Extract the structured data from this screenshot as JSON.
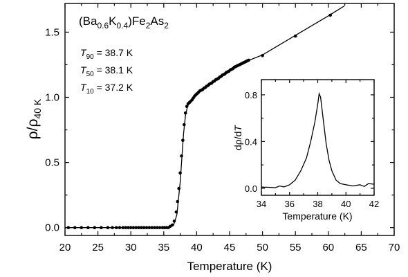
{
  "chart_data": [
    {
      "type": "scatter",
      "xlabel": "Temperature (K)",
      "ylabel": {
        "main": "ρ/ρ",
        "sub": "40 K"
      },
      "xlim": [
        20,
        70
      ],
      "ylim": [
        -0.06,
        1.72
      ],
      "x_ticks": [
        "20",
        "25",
        "30",
        "35",
        "40",
        "45",
        "50",
        "55",
        "60",
        "65",
        "70"
      ],
      "y_ticks": [
        "0.0",
        "0.5",
        "1.0",
        "1.5"
      ],
      "grid": false,
      "formula": {
        "open": "(Ba",
        "s1": "0.6",
        "k": "K",
        "s2": "0.4",
        "mid": ")Fe",
        "s3": "2",
        "as": "As",
        "s4": "2"
      },
      "annotations": [
        {
          "sym": "T",
          "sub": "90",
          "text": " = 38.7 K"
        },
        {
          "sym": "T",
          "sub": "50",
          "text": " = 38.1 K"
        },
        {
          "sym": "T",
          "sub": "10",
          "text": " = 37.2 K"
        }
      ],
      "series": [
        {
          "points": {
            "x": [
              20.5,
              21.5,
              22.5,
              23.5,
              24.5,
              25.5,
              26.5,
              27.2,
              27.8,
              28.3,
              28.8,
              29.2,
              29.6,
              30.0,
              30.4,
              30.8,
              31.2,
              31.6,
              32.0,
              32.4,
              32.8,
              33.2,
              33.6,
              34.0,
              34.4,
              34.8,
              35.1,
              35.4,
              35.7,
              36.0,
              36.3,
              36.6,
              36.9,
              37.1,
              37.3,
              37.5,
              37.7,
              37.9,
              38.1,
              38.3,
              38.5,
              38.7,
              38.9,
              39.1,
              39.3,
              39.5,
              39.7,
              39.9,
              40.1,
              40.3,
              40.5,
              40.7,
              40.9,
              41.1,
              41.3,
              41.5,
              41.7,
              41.9,
              42.1,
              42.3,
              42.5,
              42.7,
              42.9,
              43.1,
              43.3,
              43.5,
              43.7,
              43.9,
              44.1,
              44.3,
              44.5,
              44.7,
              44.9,
              45.1,
              45.3,
              45.5,
              45.7,
              45.9,
              46.1,
              46.3,
              46.5,
              46.7,
              46.9,
              47.1,
              47.3,
              47.5,
              47.7,
              47.9,
              50,
              55,
              60.3
            ],
            "y": [
              0.0,
              0.0,
              0.0,
              0.0,
              0.0,
              0.0,
              0.0,
              0.0,
              0.0,
              0.0,
              0.0,
              0.0,
              0.0,
              0.0,
              0.0,
              0.0,
              0.0,
              0.0,
              0.0,
              0.0,
              0.0,
              0.0,
              0.0,
              0.0,
              0.0,
              0.0,
              0.0,
              0.0,
              0.0,
              0.01,
              0.02,
              0.05,
              0.12,
              0.2,
              0.3,
              0.42,
              0.55,
              0.67,
              0.79,
              0.88,
              0.93,
              0.95,
              0.96,
              0.97,
              0.98,
              0.995,
              1.01,
              1.02,
              1.03,
              1.04,
              1.05,
              1.055,
              1.06,
              1.07,
              1.075,
              1.085,
              1.09,
              1.1,
              1.105,
              1.11,
              1.12,
              1.125,
              1.135,
              1.14,
              1.145,
              1.155,
              1.16,
              1.17,
              1.175,
              1.18,
              1.19,
              1.195,
              1.2,
              1.21,
              1.215,
              1.22,
              1.23,
              1.235,
              1.24,
              1.245,
              1.25,
              1.255,
              1.26,
              1.265,
              1.27,
              1.275,
              1.28,
              1.285,
              1.32,
              1.47,
              1.63
            ]
          },
          "curve": {
            "x": [
              20,
              35,
              36,
              36.5,
              37,
              37.5,
              38,
              38.3,
              38.6,
              38.9,
              39.2,
              39.6,
              40.0,
              40.5,
              41,
              42,
              44,
              46,
              48,
              50,
              55,
              60,
              62.4
            ],
            "y": [
              0.0,
              0.0,
              0.005,
              0.02,
              0.1,
              0.35,
              0.72,
              0.86,
              0.93,
              0.955,
              0.975,
              1.0,
              1.025,
              1.05,
              1.07,
              1.105,
              1.175,
              1.235,
              1.285,
              1.325,
              1.475,
              1.625,
              1.7
            ]
          }
        }
      ]
    },
    {
      "type": "line",
      "inset": true,
      "xlabel": "Temperature (K)",
      "ylabel": {
        "pre": "dρ/d",
        "sym": "T"
      },
      "xlim": [
        34,
        42
      ],
      "ylim": [
        -0.06,
        0.93
      ],
      "x_ticks": [
        "34",
        "36",
        "38",
        "40",
        "42"
      ],
      "y_ticks": [
        "0.0",
        "0.4",
        "0.8"
      ],
      "series": [
        {
          "x": [
            34,
            34.5,
            35,
            35.3,
            35.6,
            36,
            36.4,
            36.8,
            37.2,
            37.5,
            37.8,
            38.0,
            38.1,
            38.2,
            38.4,
            38.6,
            38.8,
            39.0,
            39.3,
            39.6,
            40,
            40.5,
            41,
            41.3,
            41.6,
            42
          ],
          "y": [
            0.01,
            0.008,
            0.005,
            0.02,
            0.012,
            0.03,
            0.07,
            0.15,
            0.26,
            0.4,
            0.57,
            0.72,
            0.81,
            0.78,
            0.58,
            0.38,
            0.24,
            0.15,
            0.07,
            0.04,
            0.03,
            0.02,
            0.03,
            0.015,
            0.04,
            0.035
          ]
        }
      ]
    }
  ]
}
